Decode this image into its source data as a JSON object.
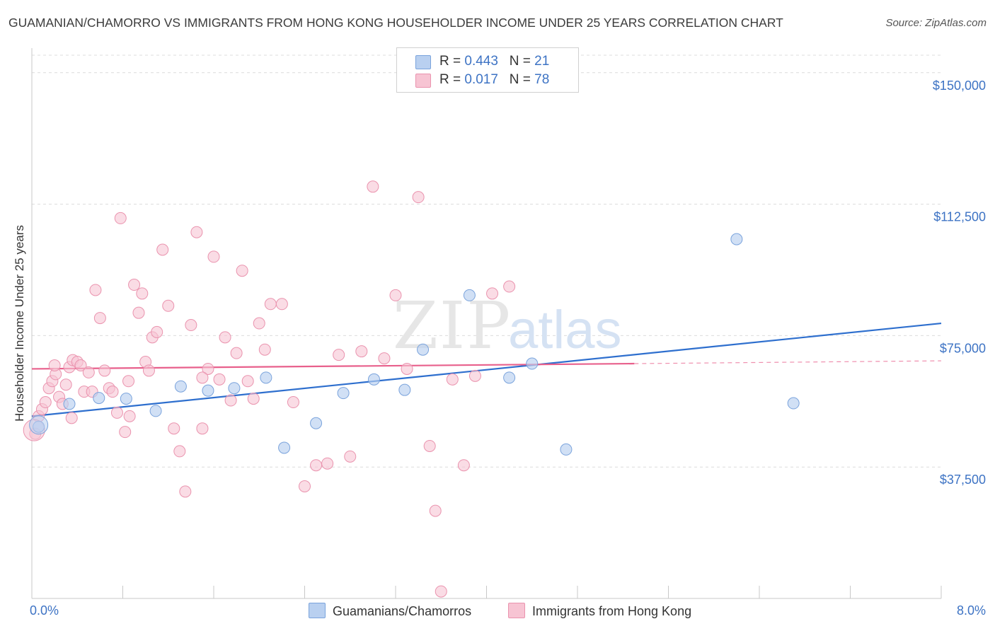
{
  "title": "GUAMANIAN/CHAMORRO VS IMMIGRANTS FROM HONG KONG HOUSEHOLDER INCOME UNDER 25 YEARS CORRELATION CHART",
  "source": "Source: ZipAtlas.com",
  "watermark": {
    "zip": "ZIP",
    "atlas": "atlas"
  },
  "legend": {
    "rows": [
      {
        "r_label": "R = ",
        "r_value": "0.443",
        "n_label": "N = ",
        "n_value": "21"
      },
      {
        "r_label": "R = ",
        "r_value": "0.017",
        "n_label": "N = ",
        "n_value": "78"
      }
    ]
  },
  "colors": {
    "blue_fill": "#b9d0f0",
    "blue_stroke": "#7aa3dc",
    "blue_line": "#2e6fce",
    "pink_fill": "#f7c4d3",
    "pink_stroke": "#ea93ae",
    "pink_line": "#e8608c",
    "tick_label": "#3d73c4",
    "grid": "#dcdcdc"
  },
  "chart_data": {
    "type": "scatter",
    "title": "GUAMANIAN/CHAMORRO VS IMMIGRANTS FROM HONG KONG HOUSEHOLDER INCOME UNDER 25 YEARS CORRELATION CHART",
    "xlabel": "",
    "ylabel": "Householder Income Under 25 years",
    "xlim": [
      0,
      8
    ],
    "ylim": [
      0,
      155000
    ],
    "x_tick_labels": [
      "0.0%",
      "8.0%"
    ],
    "y_ticks": [
      37500,
      75000,
      112500,
      150000
    ],
    "y_tick_labels": [
      "$37,500",
      "$75,000",
      "$112,500",
      "$150,000"
    ],
    "grid": true,
    "series": [
      {
        "name": "Guamanians/Chamorros",
        "color": "blue",
        "points": [
          [
            0.06,
            49000
          ],
          [
            0.33,
            55500
          ],
          [
            0.59,
            57200
          ],
          [
            0.83,
            57000
          ],
          [
            1.09,
            53500
          ],
          [
            1.31,
            60500
          ],
          [
            1.55,
            59300
          ],
          [
            1.78,
            60000
          ],
          [
            2.06,
            63000
          ],
          [
            2.22,
            43000
          ],
          [
            2.5,
            50000
          ],
          [
            2.74,
            58600
          ],
          [
            3.01,
            62500
          ],
          [
            3.28,
            59500
          ],
          [
            3.44,
            71000
          ],
          [
            3.85,
            86500
          ],
          [
            4.2,
            63000
          ],
          [
            4.4,
            67000
          ],
          [
            4.7,
            42500
          ],
          [
            6.2,
            102500
          ],
          [
            6.7,
            55700
          ]
        ],
        "trend": {
          "x": [
            0,
            8
          ],
          "y": [
            52000,
            78500
          ]
        }
      },
      {
        "name": "Immigrants from Hong Kong",
        "color": "pink",
        "points": [
          [
            0.03,
            47000
          ],
          [
            0.06,
            52000
          ],
          [
            0.09,
            54000
          ],
          [
            0.12,
            56000
          ],
          [
            0.15,
            60000
          ],
          [
            0.18,
            62000
          ],
          [
            0.21,
            64000
          ],
          [
            0.24,
            57500
          ],
          [
            0.27,
            55500
          ],
          [
            0.3,
            61000
          ],
          [
            0.33,
            66000
          ],
          [
            0.36,
            68000
          ],
          [
            0.4,
            67500
          ],
          [
            0.43,
            66500
          ],
          [
            0.46,
            59000
          ],
          [
            0.5,
            64500
          ],
          [
            0.53,
            59000
          ],
          [
            0.56,
            88000
          ],
          [
            0.6,
            80000
          ],
          [
            0.64,
            65000
          ],
          [
            0.68,
            60000
          ],
          [
            0.71,
            59000
          ],
          [
            0.75,
            53000
          ],
          [
            0.78,
            108500
          ],
          [
            0.82,
            47500
          ],
          [
            0.86,
            52000
          ],
          [
            0.9,
            89500
          ],
          [
            0.94,
            81500
          ],
          [
            0.97,
            87000
          ],
          [
            1.0,
            67500
          ],
          [
            1.03,
            65000
          ],
          [
            1.06,
            74500
          ],
          [
            1.1,
            76000
          ],
          [
            1.15,
            99500
          ],
          [
            1.2,
            83500
          ],
          [
            1.25,
            48500
          ],
          [
            1.3,
            42000
          ],
          [
            1.35,
            30500
          ],
          [
            1.4,
            78000
          ],
          [
            1.45,
            104500
          ],
          [
            1.5,
            48500
          ],
          [
            1.55,
            65500
          ],
          [
            1.6,
            97500
          ],
          [
            1.65,
            62500
          ],
          [
            1.7,
            74500
          ],
          [
            1.75,
            56500
          ],
          [
            1.8,
            70000
          ],
          [
            1.85,
            93500
          ],
          [
            1.9,
            62000
          ],
          [
            1.95,
            57000
          ],
          [
            2.0,
            78500
          ],
          [
            2.05,
            71000
          ],
          [
            2.1,
            84000
          ],
          [
            2.2,
            84000
          ],
          [
            2.3,
            56000
          ],
          [
            2.4,
            32000
          ],
          [
            2.5,
            38000
          ],
          [
            2.6,
            38500
          ],
          [
            2.7,
            69500
          ],
          [
            2.8,
            40500
          ],
          [
            2.9,
            70500
          ],
          [
            3.0,
            117500
          ],
          [
            3.1,
            68500
          ],
          [
            3.2,
            86500
          ],
          [
            3.3,
            65500
          ],
          [
            3.4,
            114500
          ],
          [
            3.55,
            25000
          ],
          [
            3.5,
            43500
          ],
          [
            3.6,
            2000
          ],
          [
            3.7,
            62500
          ],
          [
            3.8,
            38000
          ],
          [
            3.9,
            63500
          ],
          [
            4.05,
            87000
          ],
          [
            4.2,
            89000
          ],
          [
            0.2,
            66500
          ],
          [
            0.35,
            51500
          ],
          [
            0.85,
            62000
          ],
          [
            1.5,
            63000
          ]
        ],
        "trend": {
          "x": [
            0,
            5.3
          ],
          "y": [
            65500,
            67000
          ]
        },
        "trend_extension": {
          "x": [
            5.3,
            8
          ],
          "y": [
            67000,
            67800
          ]
        }
      }
    ]
  },
  "bottom_legend": [
    {
      "label": "Guamanians/Chamorros",
      "color": "blue"
    },
    {
      "label": "Immigrants from Hong Kong",
      "color": "pink"
    }
  ]
}
